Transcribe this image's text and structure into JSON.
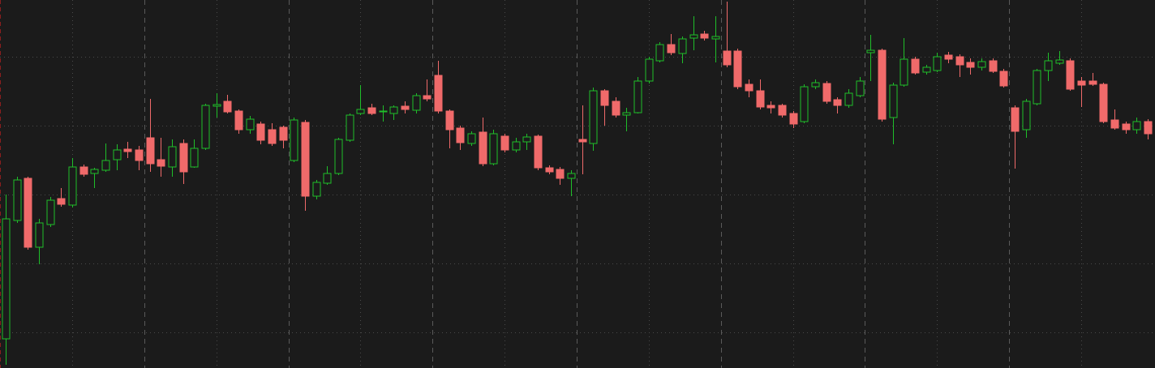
{
  "chart_data": {
    "type": "candlestick",
    "categories": [
      null,
      null,
      null,
      null,
      null,
      null,
      null,
      null,
      null,
      null,
      null,
      null,
      null,
      null,
      null,
      null,
      null,
      null,
      null,
      null,
      null,
      null,
      null,
      null,
      null,
      null,
      null,
      null,
      null,
      null,
      null,
      null,
      null,
      null,
      null,
      null,
      null,
      null,
      null,
      null,
      null,
      null,
      null,
      null,
      null,
      null,
      null,
      null,
      null,
      null,
      null,
      null,
      null,
      null,
      null,
      null,
      null,
      null,
      null,
      null,
      null,
      null,
      null,
      null,
      null,
      null,
      null,
      null,
      null,
      null,
      null,
      null,
      null,
      null,
      null,
      null,
      null,
      null,
      null,
      null,
      null,
      null,
      null,
      null,
      null,
      null,
      null,
      null,
      null,
      null,
      null,
      null,
      null,
      null,
      null,
      null,
      null,
      null,
      null,
      null,
      null,
      null,
      null,
      null
    ],
    "open": [
      36,
      182,
      234,
      149,
      177,
      209,
      201,
      248,
      240,
      244,
      257,
      270,
      269,
      284,
      257,
      248,
      277,
      248,
      271,
      323,
      329,
      317,
      294,
      301,
      294,
      297,
      256,
      303,
      212,
      228,
      240,
      281,
      314,
      321,
      316,
      314,
      323,
      318,
      336,
      361,
      317,
      296,
      277,
      291,
      252,
      286,
      269,
      279,
      286,
      247,
      245,
      234,
      282,
      277,
      342,
      329,
      312,
      315,
      354,
      379,
      399,
      388,
      407,
      412,
      406,
      391,
      391,
      350,
      342,
      324,
      324,
      314,
      304,
      347,
      351,
      331,
      324,
      336,
      389,
      392,
      309,
      349,
      381,
      365,
      367,
      386,
      384,
      377,
      371,
      379,
      366,
      321,
      294,
      326,
      367,
      376,
      379,
      354,
      354,
      350,
      306,
      301,
      294,
      304
    ],
    "high": [
      214,
      236,
      236,
      184,
      211,
      222,
      259,
      251,
      247,
      277,
      276,
      279,
      274,
      332,
      284,
      282,
      282,
      282,
      326,
      339,
      337,
      319,
      311,
      304,
      302,
      299,
      309,
      306,
      232,
      249,
      284,
      314,
      349,
      326,
      324,
      324,
      329,
      339,
      356,
      379,
      319,
      299,
      292,
      309,
      294,
      289,
      284,
      289,
      288,
      250,
      248,
      244,
      324,
      346,
      344,
      334,
      321,
      359,
      384,
      402,
      412,
      409,
      434,
      416,
      434,
      452,
      394,
      356,
      356,
      329,
      326,
      317,
      350,
      356,
      354,
      334,
      344,
      359,
      411,
      394,
      352,
      407,
      384,
      374,
      389,
      390,
      387,
      382,
      382,
      382,
      369,
      324,
      332,
      369,
      389,
      391,
      382,
      359,
      364,
      352,
      319,
      304,
      309,
      307
    ],
    "low": [
      4,
      179,
      146,
      128,
      174,
      199,
      198,
      236,
      222,
      242,
      244,
      259,
      244,
      242,
      236,
      236,
      227,
      247,
      269,
      309,
      314,
      289,
      289,
      276,
      274,
      271,
      254,
      194,
      208,
      226,
      238,
      279,
      312,
      312,
      304,
      306,
      314,
      314,
      329,
      314,
      271,
      269,
      274,
      249,
      250,
      266,
      266,
      269,
      244,
      239,
      226,
      212,
      239,
      268,
      299,
      309,
      292,
      314,
      351,
      377,
      386,
      376,
      392,
      404,
      377,
      371,
      344,
      334,
      319,
      314,
      309,
      296,
      302,
      344,
      326,
      314,
      321,
      334,
      354,
      304,
      276,
      347,
      362,
      362,
      365,
      376,
      359,
      362,
      367,
      364,
      346,
      246,
      284,
      324,
      354,
      374,
      342,
      322,
      348,
      302,
      294,
      289,
      289,
      282
    ],
    "close": [
      184,
      232,
      149,
      179,
      207,
      202,
      248,
      239,
      245,
      256,
      269,
      267,
      256,
      252,
      249,
      273,
      242,
      271,
      324,
      325,
      316,
      294,
      307,
      281,
      277,
      281,
      306,
      212,
      229,
      240,
      282,
      312,
      319,
      314,
      317,
      322,
      319,
      336,
      332,
      317,
      294,
      278,
      289,
      252,
      289,
      269,
      279,
      285,
      247,
      242,
      234,
      240,
      279,
      342,
      324,
      312,
      315,
      354,
      381,
      399,
      389,
      406,
      411,
      407,
      409,
      374,
      347,
      342,
      322,
      321,
      312,
      301,
      347,
      352,
      329,
      324,
      339,
      354,
      392,
      307,
      349,
      381,
      364,
      371,
      384,
      381,
      374,
      371,
      378,
      366,
      348,
      292,
      329,
      367,
      379,
      380,
      344,
      349,
      350,
      304,
      296,
      294,
      304,
      289
    ],
    "up_color": "#1fbf2a",
    "down_color": "#f06a6a",
    "ylim": [
      0,
      454
    ],
    "yticks": [
      44,
      129,
      214,
      299,
      384
    ],
    "xlim": [
      -0.51,
      103.66
    ],
    "xticks": [
      12.5,
      25.5,
      38.5,
      51.5,
      64.5,
      77.5,
      90.5
    ],
    "xminorticks": [
      6,
      19,
      32,
      45,
      58,
      71,
      84,
      97
    ],
    "grid": true
  }
}
